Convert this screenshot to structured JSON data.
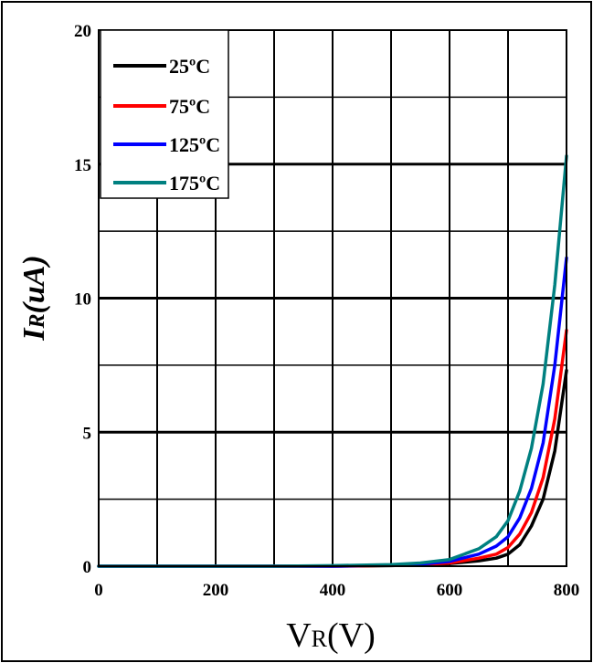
{
  "chart_data": {
    "type": "line",
    "xlabel_main": "V",
    "xlabel_sub": "R",
    "xlabel_rest": "(V)",
    "ylabel_main": "I",
    "ylabel_sub": "R",
    "ylabel_rest": "(uA)",
    "xlim": [
      0,
      800
    ],
    "ylim": [
      0,
      20
    ],
    "x_ticks": [
      "0",
      "200",
      "400",
      "600",
      "800"
    ],
    "y_ticks": [
      "0",
      "5",
      "10",
      "15",
      "20"
    ],
    "grid": true,
    "legend_position": "top-left",
    "series": [
      {
        "name": "25ºC",
        "color": "#000000",
        "x": [
          0,
          100,
          200,
          300,
          400,
          500,
          550,
          600,
          650,
          680,
          700,
          720,
          740,
          760,
          780,
          800
        ],
        "y": [
          0,
          0,
          0,
          0,
          0,
          0.02,
          0.05,
          0.1,
          0.2,
          0.3,
          0.45,
          0.8,
          1.5,
          2.5,
          4.3,
          7.3
        ]
      },
      {
        "name": "75ºC",
        "color": "#ff0000",
        "x": [
          0,
          100,
          200,
          300,
          400,
          500,
          550,
          600,
          650,
          680,
          700,
          720,
          740,
          760,
          780,
          800
        ],
        "y": [
          0,
          0,
          0,
          0,
          0,
          0.03,
          0.06,
          0.12,
          0.3,
          0.45,
          0.7,
          1.2,
          2.0,
          3.3,
          5.5,
          8.8
        ]
      },
      {
        "name": "125ºC",
        "color": "#0000ff",
        "x": [
          0,
          100,
          200,
          300,
          400,
          500,
          550,
          600,
          650,
          680,
          700,
          720,
          740,
          760,
          780,
          800
        ],
        "y": [
          0,
          0,
          0,
          0,
          0,
          0.04,
          0.08,
          0.18,
          0.45,
          0.75,
          1.1,
          1.8,
          2.9,
          4.6,
          7.5,
          11.5
        ]
      },
      {
        "name": "175ºC",
        "color": "#008080",
        "x": [
          0,
          100,
          200,
          300,
          400,
          500,
          550,
          600,
          650,
          680,
          700,
          720,
          740,
          760,
          780,
          800
        ],
        "y": [
          0,
          0,
          0,
          0,
          0.02,
          0.06,
          0.12,
          0.25,
          0.65,
          1.1,
          1.7,
          2.8,
          4.4,
          6.8,
          10.5,
          15.3
        ]
      }
    ]
  }
}
